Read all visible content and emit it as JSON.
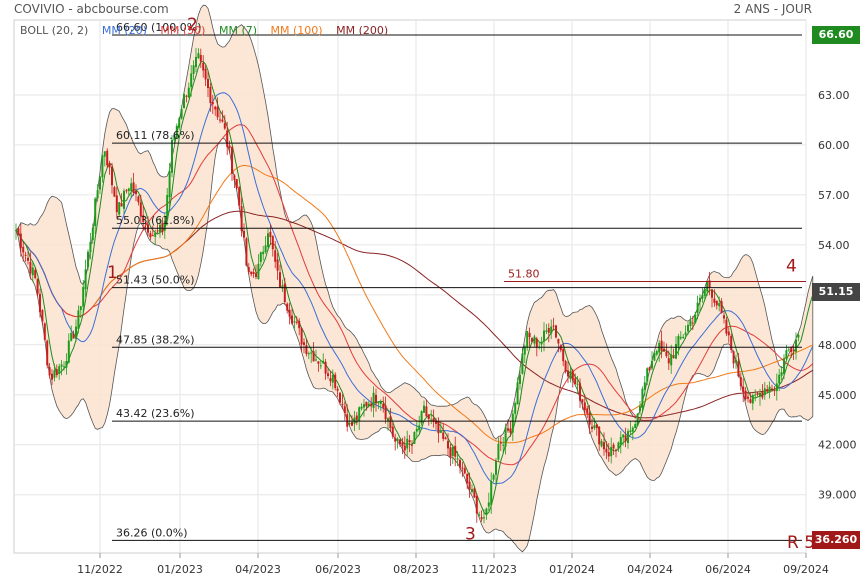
{
  "header": {
    "title": "COVIVIO - abcbourse.com",
    "period": "2 ANS - JOUR"
  },
  "legend": [
    {
      "label": "BOLL (20, 2)",
      "color": "#555555"
    },
    {
      "label": "MM (20)",
      "color": "#3b6fd6"
    },
    {
      "label": "MM (50)",
      "color": "#e23b3b"
    },
    {
      "label": "MM (7)",
      "color": "#1f8a1f"
    },
    {
      "label": "MM (100)",
      "color": "#f07a1a"
    },
    {
      "label": "MM (200)",
      "color": "#8b2323"
    }
  ],
  "badges": {
    "high": {
      "label": "66.60",
      "color": "#1f8a1f"
    },
    "last": {
      "label": "51.15",
      "color": "#444444"
    },
    "low": {
      "label": "36.260",
      "color": "#a01818"
    }
  },
  "chart_data": {
    "type": "candlestick",
    "title": "COVIVIO - abcbourse.com",
    "ylim": [
      35.5,
      67.5
    ],
    "y_ticks": [
      "39.000",
      "42.000",
      "45.000",
      "48.000",
      "51.00",
      "54.00",
      "57.00",
      "60.00",
      "63.00"
    ],
    "x_tick_labels": [
      "11/2022",
      "01/2023",
      "04/2023",
      "06/2023",
      "08/2023",
      "11/2023",
      "01/2024",
      "04/2024",
      "06/2024",
      "09/2024"
    ],
    "fib_levels": [
      {
        "value": 66.6,
        "label": "66.60  (100.0%)"
      },
      {
        "value": 60.11,
        "label": "60.11  (78.6%)"
      },
      {
        "value": 55.0,
        "label": "55.03  (61.8%)"
      },
      {
        "value": 51.43,
        "label": "51.43  (50.0%)"
      },
      {
        "value": 47.85,
        "label": "47.85  (38.2%)"
      },
      {
        "value": 43.42,
        "label": "43.42  (23.6%)"
      },
      {
        "value": 36.26,
        "label": "36.26  (0.0%)"
      }
    ],
    "resistance": {
      "value": 51.8,
      "label": "51.80"
    },
    "wave_labels": [
      {
        "label": "1",
        "x": 107,
        "y": 52.0
      },
      {
        "label": "2",
        "x": 187,
        "y": 66.9
      },
      {
        "label": "3",
        "x": 465,
        "y": 36.3
      },
      {
        "label": "4",
        "x": 786,
        "y": 52.4
      },
      {
        "label": "R 5",
        "x": 787,
        "y": 35.8
      }
    ],
    "price_waypoints": [
      [
        0,
        55.2
      ],
      [
        22,
        51.8
      ],
      [
        36,
        46.0
      ],
      [
        50,
        47.0
      ],
      [
        64,
        49.5
      ],
      [
        78,
        55.0
      ],
      [
        90,
        60.0
      ],
      [
        104,
        56.0
      ],
      [
        116,
        57.8
      ],
      [
        130,
        55.5
      ],
      [
        140,
        54.5
      ],
      [
        150,
        55.0
      ],
      [
        158,
        60.0
      ],
      [
        168,
        62.5
      ],
      [
        184,
        65.2
      ],
      [
        196,
        63.0
      ],
      [
        210,
        61.0
      ],
      [
        224,
        57.0
      ],
      [
        234,
        52.0
      ],
      [
        244,
        52.5
      ],
      [
        254,
        55.0
      ],
      [
        264,
        52.0
      ],
      [
        276,
        50.0
      ],
      [
        290,
        48.0
      ],
      [
        306,
        47.0
      ],
      [
        320,
        46.0
      ],
      [
        336,
        43.0
      ],
      [
        352,
        44.5
      ],
      [
        366,
        45.0
      ],
      [
        382,
        42.0
      ],
      [
        398,
        42.0
      ],
      [
        410,
        44.0
      ],
      [
        426,
        42.5
      ],
      [
        444,
        41.0
      ],
      [
        458,
        39.0
      ],
      [
        470,
        37.2
      ],
      [
        484,
        42.0
      ],
      [
        496,
        43.0
      ],
      [
        512,
        48.5
      ],
      [
        526,
        48.0
      ],
      [
        538,
        49.5
      ],
      [
        550,
        47.0
      ],
      [
        566,
        45.0
      ],
      [
        580,
        43.0
      ],
      [
        594,
        41.5
      ],
      [
        604,
        42.0
      ],
      [
        616,
        42.5
      ],
      [
        630,
        45.5
      ],
      [
        642,
        48.0
      ],
      [
        654,
        47.0
      ],
      [
        668,
        48.5
      ],
      [
        682,
        50.0
      ],
      [
        694,
        51.8
      ],
      [
        706,
        50.0
      ],
      [
        716,
        48.0
      ],
      [
        728,
        45.5
      ],
      [
        738,
        44.5
      ],
      [
        752,
        45.5
      ],
      [
        762,
        45.5
      ],
      [
        772,
        47.5
      ],
      [
        784,
        48.5
      ],
      [
        794,
        51.8
      ],
      [
        800,
        51.2
      ]
    ]
  }
}
